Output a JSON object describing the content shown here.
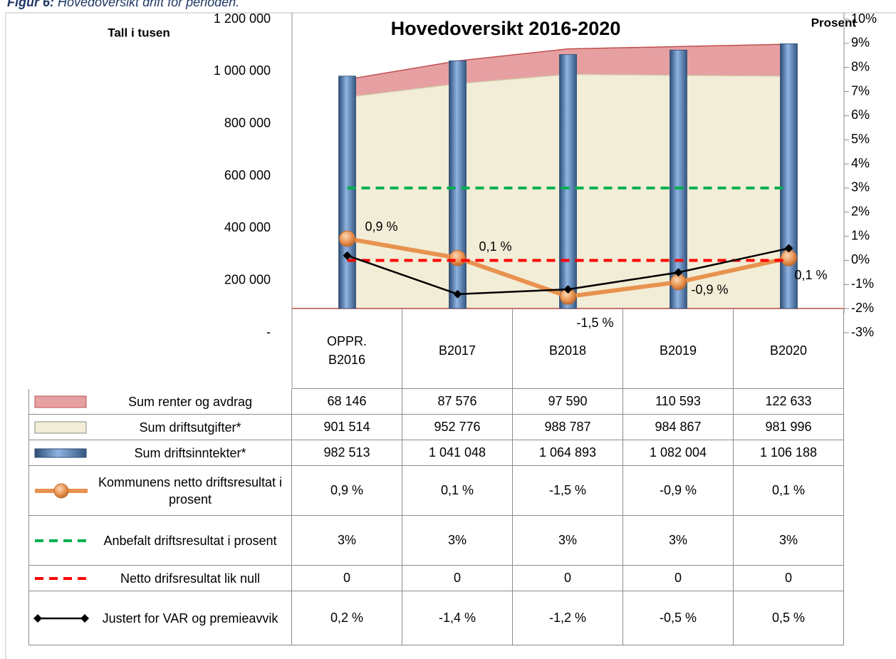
{
  "caption_label": "Figur 6:",
  "caption_text": "Hovedoversikt drift for perioden.",
  "chart_data": {
    "type": "combo",
    "title": "Hovedoversikt 2016-2020",
    "y_label": "Tall i tusen",
    "y2_label": "Prosent",
    "categories": [
      "OPPR. B2016",
      "B2017",
      "B2018",
      "B2019",
      "B2020"
    ],
    "ylim": [
      0,
      1200000
    ],
    "yticks": [
      {
        "value": 0,
        "label": "-"
      },
      {
        "value": 200000,
        "label": "200 000"
      },
      {
        "value": 400000,
        "label": "400 000"
      },
      {
        "value": 600000,
        "label": "600 000"
      },
      {
        "value": 800000,
        "label": "800 000"
      },
      {
        "value": 1000000,
        "label": "1 000 000"
      },
      {
        "value": 1200000,
        "label": "1 200 000"
      }
    ],
    "y2lim": [
      -3,
      10
    ],
    "y2ticks": [
      {
        "value": -3,
        "label": "-3%"
      },
      {
        "value": -2,
        "label": "-2%"
      },
      {
        "value": -1,
        "label": "-1%"
      },
      {
        "value": 0,
        "label": "0%"
      },
      {
        "value": 1,
        "label": "1%"
      },
      {
        "value": 2,
        "label": "2%"
      },
      {
        "value": 3,
        "label": "3%"
      },
      {
        "value": 4,
        "label": "4%"
      },
      {
        "value": 5,
        "label": "5%"
      },
      {
        "value": 6,
        "label": "6%"
      },
      {
        "value": 7,
        "label": "7%"
      },
      {
        "value": 8,
        "label": "8%"
      },
      {
        "value": 9,
        "label": "9%"
      },
      {
        "value": 10,
        "label": "10%"
      }
    ],
    "series": [
      {
        "name": "Sum renter og avdrag",
        "type": "area",
        "stack": true,
        "color": "#e6a0a2",
        "values": [
          68146,
          87576,
          97590,
          110593,
          122633
        ],
        "value_labels": [
          "68 146",
          "87 576",
          "97 590",
          "110 593",
          "122 633"
        ]
      },
      {
        "name": "Sum driftsutgifter*",
        "type": "area",
        "color": "#f2edd6",
        "values": [
          901514,
          952776,
          988787,
          984867,
          981996
        ],
        "value_labels": [
          "901 514",
          "952 776",
          "988 787",
          "984 867",
          "981 996"
        ]
      },
      {
        "name": "Sum driftsinntekter*",
        "type": "bar",
        "color": "#4f81bd",
        "values": [
          982513,
          1041048,
          1064893,
          1082004,
          1106188
        ],
        "value_labels": [
          "982 513",
          "1 041 048",
          "1 064 893",
          "1 082 004",
          "1 106 188"
        ]
      },
      {
        "name": "Kommunens netto driftsresultat i prosent",
        "type": "line",
        "axis": "y2",
        "marker": "circle",
        "data_labels": true,
        "color": "#e8924f",
        "values": [
          0.9,
          0.1,
          -1.5,
          -0.9,
          0.1
        ],
        "value_labels": [
          "0,9 %",
          "0,1 %",
          "-1,5 %",
          "-0,9 %",
          "0,1 %"
        ]
      },
      {
        "name": "Anbefalt driftsresultat i prosent",
        "type": "line",
        "axis": "y2",
        "dash": true,
        "color": "#00b050",
        "values": [
          3,
          3,
          3,
          3,
          3
        ],
        "value_labels": [
          "3%",
          "3%",
          "3%",
          "3%",
          "3%"
        ]
      },
      {
        "name": "Netto drifsresultat lik null",
        "type": "line",
        "axis": "y2",
        "dash": true,
        "color": "#ff0000",
        "values": [
          0,
          0,
          0,
          0,
          0
        ]
      },
      {
        "name": "Justert for VAR og premieavvik",
        "type": "line",
        "axis": "y2",
        "marker": "diamond",
        "color": "#000000",
        "values": [
          0.2,
          -1.4,
          -1.2,
          -0.5,
          0.5
        ],
        "value_labels": [
          "0,2 %",
          "-1,4 %",
          "-1,2 %",
          "-0,5 %",
          "0,5 %"
        ]
      }
    ]
  }
}
